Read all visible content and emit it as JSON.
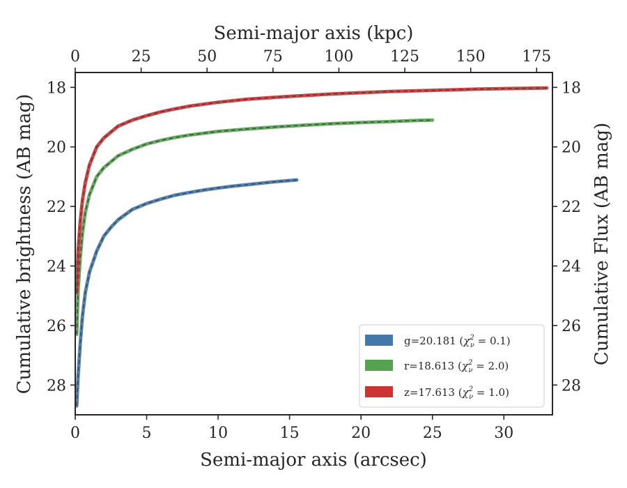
{
  "chart_data": {
    "type": "line",
    "xlabel": "Semi-major axis (arcsec)",
    "x2label": "Semi-major axis (kpc)",
    "ylabel": "Cumulative brightness (AB mag)",
    "y2label": "Cumulative Flux (AB mag)",
    "xlim": [
      0,
      33.4
    ],
    "x2lim": [
      0,
      181
    ],
    "ylim": [
      29.0,
      17.5
    ],
    "y_inverted": true,
    "xticks": [
      "0",
      "5",
      "10",
      "15",
      "20",
      "25",
      "30"
    ],
    "x2ticks": [
      "0",
      "25",
      "50",
      "75",
      "100",
      "125",
      "150",
      "175"
    ],
    "yticks": [
      "18",
      "20",
      "22",
      "24",
      "26",
      "28"
    ],
    "y2ticks": [
      "18",
      "20",
      "22",
      "24",
      "26",
      "28"
    ],
    "grid": false,
    "legend_position": "lower-right",
    "series": [
      {
        "name": "g",
        "legend": "g=20.181 (χ²ᵥ = 0.1)",
        "legend_main": "g=20.181 (",
        "legend_math": "χ",
        "legend_sub": "ν",
        "legend_sup": "2",
        "legend_rest": " = 0.1)",
        "color": "#4477aa",
        "x": [
          0.1,
          0.2,
          0.35,
          0.5,
          0.7,
          1.0,
          1.5,
          2.0,
          2.5,
          3.0,
          4.0,
          5.0,
          6.0,
          7.0,
          8.0,
          9.0,
          10.0,
          11.0,
          12.0,
          13.0,
          14.0,
          15.0,
          15.5
        ],
        "y": [
          28.7,
          27.7,
          26.6,
          25.7,
          24.9,
          24.2,
          23.5,
          23.0,
          22.7,
          22.45,
          22.1,
          21.9,
          21.75,
          21.62,
          21.53,
          21.45,
          21.38,
          21.32,
          21.27,
          21.22,
          21.17,
          21.13,
          21.11
        ]
      },
      {
        "name": "r",
        "legend": "r=18.613 (χ²ᵥ = 2.0)",
        "legend_main": "r=18.613 (",
        "legend_math": "χ",
        "legend_sub": "ν",
        "legend_sup": "2",
        "legend_rest": " = 2.0)",
        "color": "#55a350",
        "x": [
          0.1,
          0.2,
          0.35,
          0.5,
          0.7,
          1.0,
          1.5,
          2.0,
          3.0,
          4.0,
          5.0,
          6.0,
          7.0,
          8.0,
          10.0,
          12.0,
          14.0,
          16.0,
          18.0,
          20.0,
          22.0,
          24.0,
          25.0
        ],
        "y": [
          26.3,
          24.8,
          23.7,
          22.9,
          22.2,
          21.6,
          21.0,
          20.7,
          20.3,
          20.08,
          19.9,
          19.78,
          19.68,
          19.6,
          19.48,
          19.4,
          19.33,
          19.27,
          19.22,
          19.18,
          19.15,
          19.11,
          19.1
        ]
      },
      {
        "name": "z",
        "legend": "z=17.613 (χ²ᵥ = 1.0)",
        "legend_main": "z=17.613 (",
        "legend_math": "χ",
        "legend_sub": "ν",
        "legend_sup": "2",
        "legend_rest": " = 1.0)",
        "color": "#cc3333",
        "x": [
          0.1,
          0.2,
          0.35,
          0.5,
          0.7,
          1.0,
          1.5,
          2.0,
          3.0,
          4.0,
          5.0,
          6.0,
          7.0,
          8.0,
          10.0,
          12.0,
          15.0,
          18.0,
          20.0,
          22.0,
          25.0,
          28.0,
          30.0,
          33.0
        ],
        "y": [
          24.9,
          23.5,
          22.5,
          21.8,
          21.2,
          20.6,
          20.0,
          19.7,
          19.3,
          19.1,
          18.95,
          18.82,
          18.72,
          18.63,
          18.5,
          18.4,
          18.3,
          18.22,
          18.18,
          18.14,
          18.1,
          18.06,
          18.04,
          18.02
        ]
      }
    ]
  }
}
